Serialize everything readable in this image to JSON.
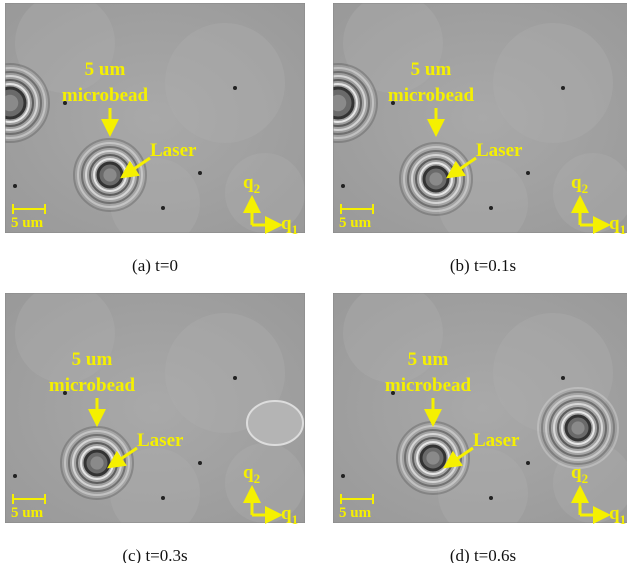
{
  "panels": [
    {
      "caption": "(a) t=0",
      "bead_size": "5 um",
      "bead_name": "microbead",
      "laser": "Laser",
      "scale": "5 um",
      "axis_symbol": "q",
      "axis_up_index": "2",
      "axis_right_index": "1"
    },
    {
      "caption": "(b) t=0.1s",
      "bead_size": "5 um",
      "bead_name": "microbead",
      "laser": "Laser",
      "scale": "5 um",
      "axis_symbol": "q",
      "axis_up_index": "2",
      "axis_right_index": "1"
    },
    {
      "caption": "(c) t=0.3s",
      "bead_size": "5 um",
      "bead_name": "microbead",
      "laser": "Laser",
      "scale": "5 um",
      "axis_symbol": "q",
      "axis_up_index": "2",
      "axis_right_index": "1"
    },
    {
      "caption": "(d) t=0.6s",
      "bead_size": "5 um",
      "bead_name": "microbead",
      "laser": "Laser",
      "scale": "5 um",
      "axis_symbol": "q",
      "axis_up_index": "2",
      "axis_right_index": "1"
    }
  ]
}
